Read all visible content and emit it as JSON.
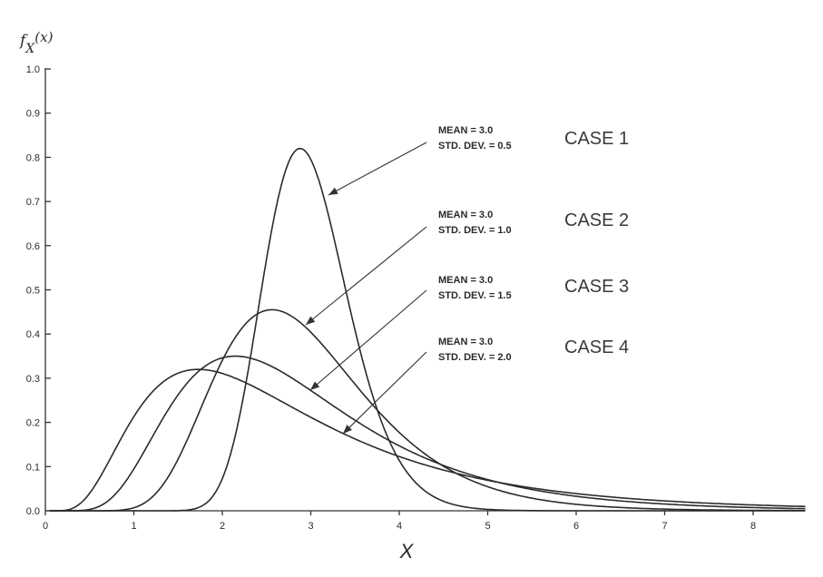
{
  "chart_data": {
    "type": "line",
    "ylabel": "fX(x)",
    "ylabel_parts": {
      "f": "f",
      "sub": "X",
      "arg": "(x)"
    },
    "xlabel": "X",
    "xlim": [
      0,
      8.6
    ],
    "ylim": [
      0,
      1.0
    ],
    "x_ticks": [
      "0",
      "1",
      "2",
      "3",
      "4",
      "5",
      "6",
      "7",
      "8"
    ],
    "y_ticks": [
      "0.0",
      "0.1",
      "0.2",
      "0.3",
      "0.4",
      "0.5",
      "0.6",
      "0.7",
      "0.8",
      "0.9",
      "1.0"
    ],
    "grid": false,
    "series": [
      {
        "name": "CASE 1",
        "mean_label": "MEAN = 3.0",
        "sd_label": "STD. DEV. = 0.5",
        "mean": 3.0,
        "sd": 0.5,
        "peak": 0.82,
        "peak_x": 2.9,
        "text_color": "#2a2a2a"
      },
      {
        "name": "CASE 2",
        "mean_label": "MEAN = 3.0",
        "sd_label": "STD. DEV. = 1.0",
        "mean": 3.0,
        "sd": 1.0,
        "peak": 0.455,
        "peak_x": 2.6,
        "text_color": "#2a2a2a"
      },
      {
        "name": "CASE 3",
        "mean_label": "MEAN = 3.0",
        "sd_label": "STD. DEV. = 1.5",
        "mean": 3.0,
        "sd": 1.5,
        "peak": 0.35,
        "peak_x": 2.2,
        "text_color": "#2e8b3e"
      },
      {
        "name": "CASE 4",
        "mean_label": "MEAN = 3.0",
        "sd_label": "STD. DEV. = 2.0",
        "mean": 3.0,
        "sd": 2.0,
        "peak": 0.32,
        "peak_x": 1.7,
        "text_color": "#2a2a2a"
      }
    ]
  }
}
